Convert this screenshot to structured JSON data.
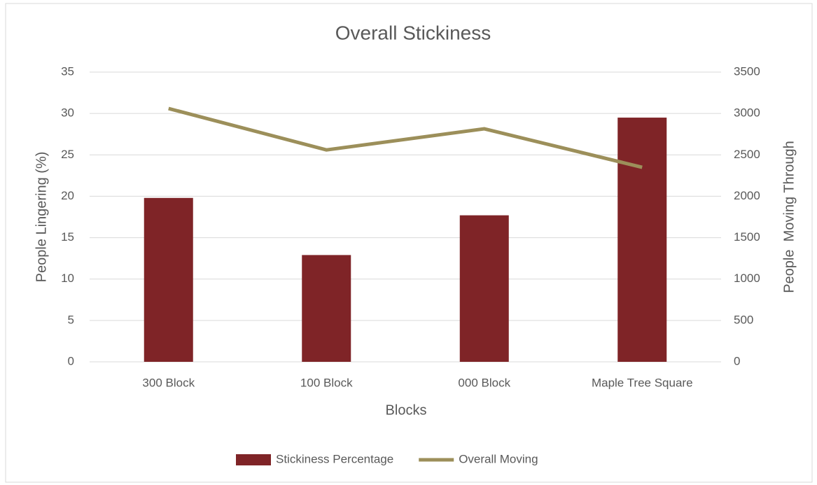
{
  "chart_data": {
    "type": "bar",
    "title": "Overall Stickiness",
    "x_label": "Blocks",
    "y_label": "People Lingering (%)",
    "y2_label": "People  Moving Through",
    "categories": [
      "300 Block",
      "100 Block",
      "000 Block",
      "Maple Tree Square"
    ],
    "series": [
      {
        "name": "Stickiness Percentage",
        "type": "bar",
        "color": "#7f2427",
        "values": [
          19.8,
          12.9,
          17.7,
          29.5
        ]
      },
      {
        "name": "Overall Moving",
        "type": "line",
        "axis": "y2",
        "color": "#9c8f5a",
        "values": [
          3060,
          2560,
          2815,
          2350
        ]
      }
    ],
    "ylim": [
      0,
      35
    ],
    "yticks": [
      0,
      5,
      10,
      15,
      20,
      25,
      30,
      35
    ],
    "y2lim": [
      0,
      3500
    ],
    "y2ticks": [
      0,
      500,
      1000,
      1500,
      2000,
      2500,
      3000,
      3500
    ],
    "grid": true,
    "legend": "bottom"
  }
}
